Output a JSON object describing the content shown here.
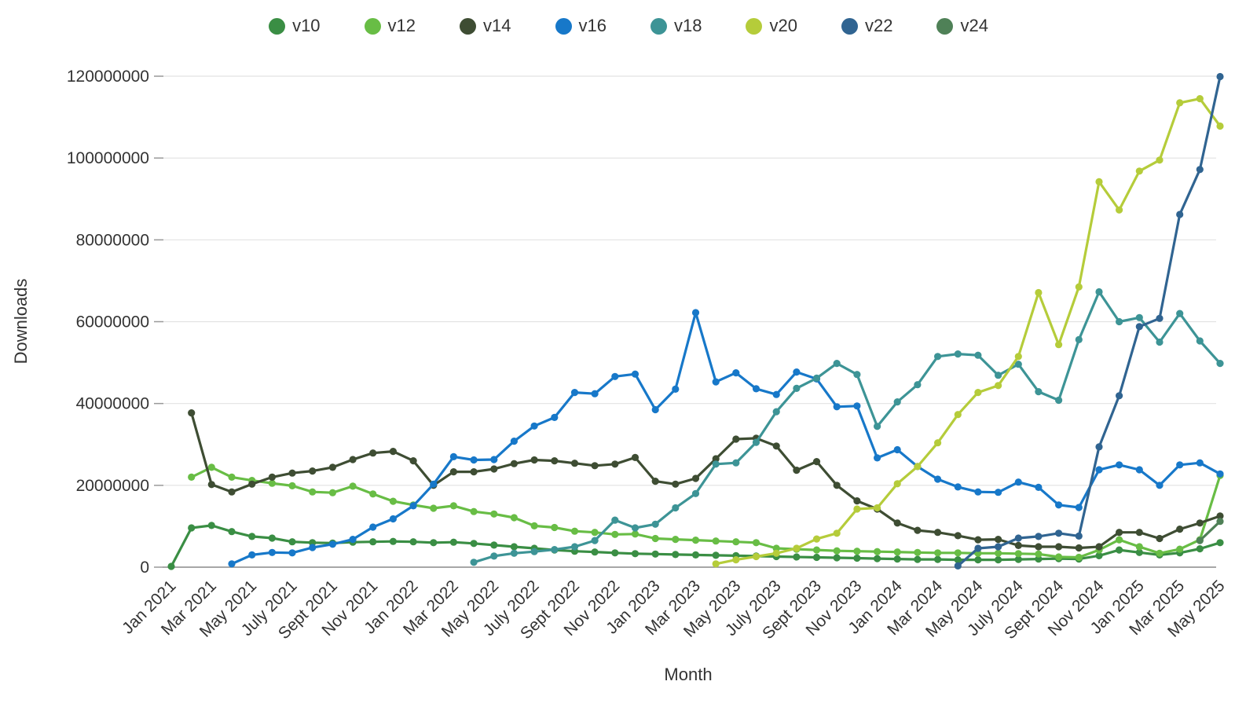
{
  "chart_data": {
    "type": "line",
    "xlabel": "Month",
    "ylabel": "Downloads",
    "ylim": [
      0,
      120000000
    ],
    "grid": "horizontal",
    "legend_position": "top",
    "y_ticks": [
      0,
      20000000,
      40000000,
      60000000,
      80000000,
      100000000,
      120000000
    ],
    "y_tick_labels": [
      "0",
      "20000000",
      "40000000",
      "60000000",
      "80000000",
      "100000000",
      "120000000"
    ],
    "x_tick_labels": [
      "Jan 2021",
      "Mar 2021",
      "May 2021",
      "July 2021",
      "Sept 2021",
      "Nov 2021",
      "Jan 2022",
      "Mar 2022",
      "May 2022",
      "July 2022",
      "Sept 2022",
      "Nov 2022",
      "Jan 2023",
      "Mar 2023",
      "May 2023",
      "July 2023",
      "Sept 2023",
      "Nov 2023",
      "Jan 2024",
      "Mar 2024",
      "May 2024",
      "July 2024",
      "Sept 2024",
      "Nov 2024",
      "Jan 2025",
      "Mar 2025",
      "May 2025"
    ],
    "months": [
      "Jan 2021",
      "Feb 2021",
      "Mar 2021",
      "Apr 2021",
      "May 2021",
      "Jun 2021",
      "July 2021",
      "Aug 2021",
      "Sept 2021",
      "Oct 2021",
      "Nov 2021",
      "Dec 2021",
      "Jan 2022",
      "Feb 2022",
      "Mar 2022",
      "Apr 2022",
      "May 2022",
      "Jun 2022",
      "July 2022",
      "Aug 2022",
      "Sept 2022",
      "Oct 2022",
      "Nov 2022",
      "Dec 2022",
      "Jan 2023",
      "Feb 2023",
      "Mar 2023",
      "Apr 2023",
      "May 2023",
      "Jun 2023",
      "July 2023",
      "Aug 2023",
      "Sept 2023",
      "Oct 2023",
      "Nov 2023",
      "Dec 2023",
      "Jan 2024",
      "Feb 2024",
      "Mar 2024",
      "Apr 2024",
      "May 2024",
      "Jun 2024",
      "July 2024",
      "Aug 2024",
      "Sept 2024",
      "Oct 2024",
      "Nov 2024",
      "Dec 2024",
      "Jan 2025",
      "Feb 2025",
      "Mar 2025",
      "Apr 2025",
      "May 2025"
    ],
    "series": [
      {
        "name": "v10",
        "color": "#3a8e44",
        "values": [
          200000,
          9600000,
          10200000,
          8700000,
          7500000,
          7100000,
          6200000,
          6000000,
          5900000,
          6100000,
          6200000,
          6300000,
          6200000,
          6000000,
          6100000,
          5800000,
          5400000,
          5000000,
          4600000,
          4200000,
          3900000,
          3700000,
          3500000,
          3300000,
          3200000,
          3100000,
          3000000,
          2900000,
          2800000,
          2700000,
          2600000,
          2500000,
          2400000,
          2300000,
          2200000,
          2100000,
          2000000,
          1900000,
          1900000,
          1800000,
          1800000,
          1800000,
          1900000,
          2000000,
          2100000,
          2000000,
          2800000,
          4200000,
          3600000,
          3000000,
          3500000,
          4500000,
          6000000
        ]
      },
      {
        "name": "v12",
        "color": "#68bd45",
        "values": [
          null,
          22000000,
          24400000,
          22000000,
          21200000,
          20500000,
          19900000,
          18400000,
          18200000,
          19800000,
          17900000,
          16100000,
          15200000,
          14400000,
          15000000,
          13600000,
          13000000,
          12100000,
          10100000,
          9700000,
          8800000,
          8500000,
          8000000,
          8100000,
          7000000,
          6800000,
          6600000,
          6400000,
          6200000,
          6000000,
          4600000,
          4400000,
          4200000,
          4000000,
          3900000,
          3800000,
          3700000,
          3600000,
          3500000,
          3500000,
          3400000,
          3400000,
          3300000,
          3200000,
          2500000,
          2400000,
          4200000,
          6700000,
          5000000,
          3400000,
          4400000,
          6700000,
          22400000
        ]
      },
      {
        "name": "v14",
        "color": "#3e4d33",
        "values": [
          null,
          37700000,
          20200000,
          18400000,
          20300000,
          22000000,
          23000000,
          23500000,
          24400000,
          26300000,
          27900000,
          28300000,
          26000000,
          20000000,
          23300000,
          23300000,
          24000000,
          25300000,
          26200000,
          26000000,
          25400000,
          24800000,
          25200000,
          26800000,
          21000000,
          20300000,
          21700000,
          26500000,
          31300000,
          31500000,
          29600000,
          23700000,
          25800000,
          20000000,
          16200000,
          14200000,
          10800000,
          9000000,
          8500000,
          7700000,
          6700000,
          6800000,
          5300000,
          5000000,
          5000000,
          4700000,
          5000000,
          8500000,
          8500000,
          7000000,
          9300000,
          10800000,
          12500000
        ]
      },
      {
        "name": "v16",
        "color": "#1778c9",
        "values": [
          null,
          null,
          null,
          800000,
          3000000,
          3600000,
          3500000,
          4800000,
          5600000,
          6800000,
          9800000,
          11800000,
          15000000,
          20300000,
          27000000,
          26200000,
          26300000,
          30800000,
          34500000,
          36600000,
          42700000,
          42400000,
          46600000,
          47200000,
          38500000,
          43500000,
          62200000,
          45300000,
          47500000,
          43600000,
          42200000,
          47700000,
          46000000,
          39200000,
          39400000,
          26700000,
          28700000,
          24600000,
          21500000,
          19600000,
          18400000,
          18300000,
          20800000,
          19500000,
          15200000,
          14600000,
          23800000,
          25000000,
          23800000,
          20000000,
          25000000,
          25500000,
          22800000
        ]
      },
      {
        "name": "v18",
        "color": "#3d9496",
        "values": [
          null,
          null,
          null,
          null,
          null,
          null,
          null,
          null,
          null,
          null,
          null,
          null,
          null,
          null,
          null,
          1200000,
          2700000,
          3400000,
          3800000,
          4300000,
          5000000,
          6500000,
          11500000,
          9600000,
          10500000,
          14500000,
          18000000,
          25200000,
          25500000,
          30500000,
          38000000,
          43700000,
          46200000,
          49800000,
          47100000,
          34400000,
          40400000,
          44600000,
          51500000,
          52100000,
          51800000,
          46900000,
          49600000,
          42900000,
          40800000,
          55600000,
          67300000,
          60000000,
          61000000,
          55000000,
          62000000,
          55300000,
          49800000
        ]
      },
      {
        "name": "v20",
        "color": "#b5cc3a",
        "values": [
          null,
          null,
          null,
          null,
          null,
          null,
          null,
          null,
          null,
          null,
          null,
          null,
          null,
          null,
          null,
          null,
          null,
          null,
          null,
          null,
          null,
          null,
          null,
          null,
          null,
          null,
          null,
          800000,
          1800000,
          2600000,
          3400000,
          4600000,
          6900000,
          8300000,
          14200000,
          14500000,
          20400000,
          24600000,
          30400000,
          37300000,
          42700000,
          44400000,
          51500000,
          67100000,
          54400000,
          68500000,
          94200000,
          87300000,
          96800000,
          99500000,
          113500000,
          114500000,
          107800000
        ]
      },
      {
        "name": "v22",
        "color": "#306491",
        "values": [
          null,
          null,
          null,
          null,
          null,
          null,
          null,
          null,
          null,
          null,
          null,
          null,
          null,
          null,
          null,
          null,
          null,
          null,
          null,
          null,
          null,
          null,
          null,
          null,
          null,
          null,
          null,
          null,
          null,
          null,
          null,
          null,
          null,
          null,
          null,
          null,
          null,
          null,
          null,
          300000,
          4600000,
          5000000,
          7100000,
          7500000,
          8300000,
          7600000,
          29400000,
          41900000,
          58800000,
          60800000,
          86200000,
          97200000,
          119900000
        ]
      },
      {
        "name": "v24",
        "color": "#4f8157",
        "values": [
          null,
          null,
          null,
          null,
          null,
          null,
          null,
          null,
          null,
          null,
          null,
          null,
          null,
          null,
          null,
          null,
          null,
          null,
          null,
          null,
          null,
          null,
          null,
          null,
          null,
          null,
          null,
          null,
          null,
          null,
          null,
          null,
          null,
          null,
          null,
          null,
          null,
          null,
          null,
          null,
          null,
          null,
          null,
          null,
          null,
          null,
          null,
          null,
          null,
          null,
          null,
          6500000,
          11200000
        ]
      }
    ],
    "colors": {
      "axis_line": "#8a8a8a",
      "gridline": "#e2e2e2",
      "tick_mark": "#999999",
      "text": "#333333"
    }
  }
}
